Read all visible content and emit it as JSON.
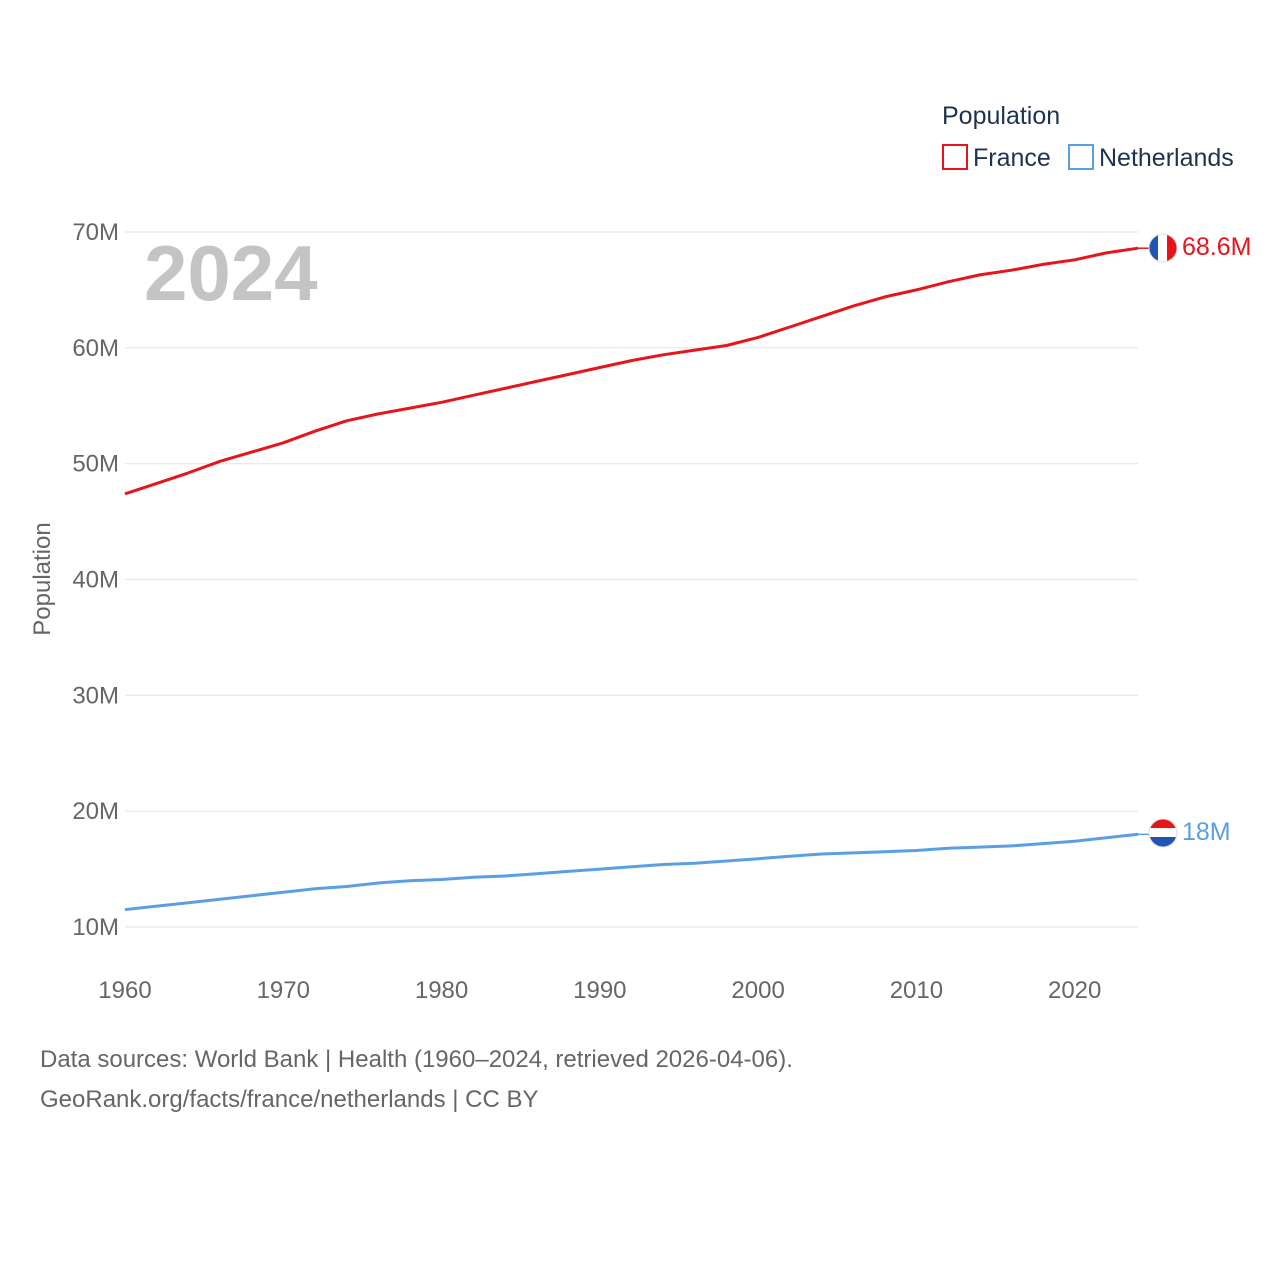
{
  "chart_data": {
    "type": "line",
    "year_label": "2024",
    "ylabel": "Population",
    "xlabel": "",
    "xlim": [
      1960,
      2024
    ],
    "ylim": [
      10000000,
      70000000
    ],
    "x_ticks": [
      1960,
      1970,
      1980,
      1990,
      2000,
      2010,
      2020
    ],
    "x_tick_labels": [
      "1960",
      "1970",
      "1980",
      "1990",
      "2000",
      "2010",
      "2020"
    ],
    "y_ticks": [
      10000000,
      20000000,
      30000000,
      40000000,
      50000000,
      60000000,
      70000000
    ],
    "y_tick_labels": [
      "10M",
      "20M",
      "30M",
      "40M",
      "50M",
      "60M",
      "70M"
    ],
    "legend": {
      "title": "Population",
      "position": "top-right"
    },
    "series": [
      {
        "name": "France",
        "color": "#e8141c",
        "end_label": "68.6M",
        "flag": "france-flag",
        "points": [
          [
            1960,
            47.4
          ],
          [
            1962,
            48.3
          ],
          [
            1964,
            49.2
          ],
          [
            1966,
            50.2
          ],
          [
            1968,
            51.0
          ],
          [
            1970,
            51.8
          ],
          [
            1972,
            52.8
          ],
          [
            1974,
            53.7
          ],
          [
            1976,
            54.3
          ],
          [
            1978,
            54.8
          ],
          [
            1980,
            55.3
          ],
          [
            1982,
            55.9
          ],
          [
            1984,
            56.5
          ],
          [
            1986,
            57.1
          ],
          [
            1988,
            57.7
          ],
          [
            1990,
            58.3
          ],
          [
            1992,
            58.9
          ],
          [
            1994,
            59.4
          ],
          [
            1996,
            59.8
          ],
          [
            1998,
            60.2
          ],
          [
            2000,
            60.9
          ],
          [
            2002,
            61.8
          ],
          [
            2004,
            62.7
          ],
          [
            2006,
            63.6
          ],
          [
            2008,
            64.4
          ],
          [
            2010,
            65.0
          ],
          [
            2012,
            65.7
          ],
          [
            2014,
            66.3
          ],
          [
            2016,
            66.7
          ],
          [
            2018,
            67.2
          ],
          [
            2020,
            67.6
          ],
          [
            2022,
            68.2
          ],
          [
            2024,
            68.6
          ]
        ]
      },
      {
        "name": "Netherlands",
        "color": "#5b9fe3",
        "end_label": "18M",
        "flag": "netherlands-flag",
        "points": [
          [
            1960,
            11.5
          ],
          [
            1962,
            11.8
          ],
          [
            1964,
            12.1
          ],
          [
            1966,
            12.4
          ],
          [
            1968,
            12.7
          ],
          [
            1970,
            13.0
          ],
          [
            1972,
            13.3
          ],
          [
            1974,
            13.5
          ],
          [
            1976,
            13.8
          ],
          [
            1978,
            14.0
          ],
          [
            1980,
            14.1
          ],
          [
            1982,
            14.3
          ],
          [
            1984,
            14.4
          ],
          [
            1986,
            14.6
          ],
          [
            1988,
            14.8
          ],
          [
            1990,
            15.0
          ],
          [
            1992,
            15.2
          ],
          [
            1994,
            15.4
          ],
          [
            1996,
            15.5
          ],
          [
            1998,
            15.7
          ],
          [
            2000,
            15.9
          ],
          [
            2002,
            16.1
          ],
          [
            2004,
            16.3
          ],
          [
            2006,
            16.4
          ],
          [
            2008,
            16.5
          ],
          [
            2010,
            16.6
          ],
          [
            2012,
            16.8
          ],
          [
            2014,
            16.9
          ],
          [
            2016,
            17.0
          ],
          [
            2018,
            17.2
          ],
          [
            2020,
            17.4
          ],
          [
            2022,
            17.7
          ],
          [
            2024,
            18.0
          ]
        ]
      }
    ],
    "value_unit": "millions"
  },
  "footer": {
    "line1": "Data sources: World Bank | Health (1960–2024, retrieved 2026-04-06).",
    "line2": "GeoRank.org/facts/france/netherlands | CC BY"
  },
  "colors": {
    "france_blue": "#1f55b4",
    "france_white": "#ffffff",
    "france_red": "#e8141c",
    "nl_red": "#e8141c",
    "nl_white": "#ffffff",
    "nl_blue": "#1f55b4"
  }
}
